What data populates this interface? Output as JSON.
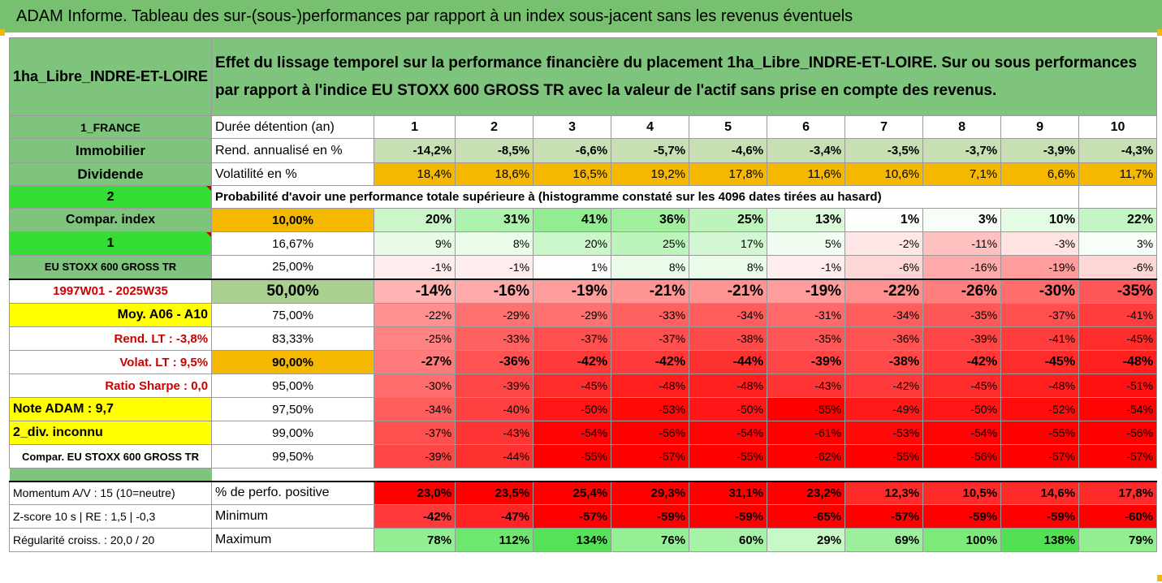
{
  "banner": "ADAM Informe. Tableau des sur-(sous-)performances par rapport à un index sous-jacent sans les revenus éventuels",
  "placement_name": "1ha_Libre_INDRE-ET-LOIRE",
  "description": "Effet du lissage temporel sur la performance financière du placement 1ha_Libre_INDRE-ET-LOIRE. Sur ou sous performances par rapport à l'indice EU STOXX 600 GROSS TR avec la valeur de l'actif sans prise en compte des revenus.",
  "left": {
    "country": "1_FRANCE",
    "category": "Immobilier",
    "dividend": "Dividende",
    "num2": "2",
    "compar_index": "Compar. index",
    "num1": "1",
    "index_name": "EU STOXX 600 GROSS TR",
    "period": "1997W01 - 2025W35",
    "moy": "Moy. A06 - A10",
    "rend_lt": "Rend. LT :   -3,8%",
    "volat_lt": "Volat. LT :   9,5%",
    "sharpe": "Ratio Sharpe :   0,0",
    "note": "Note ADAM : 9,7",
    "div": "2_div. inconnu",
    "compar": "Compar. EU STOXX 600 GROSS TR"
  },
  "labels": {
    "duree": "Durée détention (an)",
    "rend": "Rend. annualisé en %",
    "volat": "Volatilité en %",
    "proba": "Probabilité d'avoir une performance totale supérieure à (histogramme constaté sur les 4096 dates tirées au hasard)",
    "pct_pos": "% de perfo. positive",
    "minimum": "Minimum",
    "maximum": "Maximum"
  },
  "years": [
    "1",
    "2",
    "3",
    "4",
    "5",
    "6",
    "7",
    "8",
    "9",
    "10"
  ],
  "rend": [
    "-14,2%",
    "-8,5%",
    "-6,6%",
    "-5,7%",
    "-4,6%",
    "-3,4%",
    "-3,5%",
    "-3,7%",
    "-3,9%",
    "-4,3%"
  ],
  "volat": [
    "18,4%",
    "18,6%",
    "16,5%",
    "19,2%",
    "17,8%",
    "11,6%",
    "10,6%",
    "7,1%",
    "6,6%",
    "11,7%"
  ],
  "quantiles": [
    {
      "p": "10,00%",
      "v": [
        "20%",
        "31%",
        "41%",
        "36%",
        "25%",
        "13%",
        "1%",
        "3%",
        "10%",
        "22%"
      ]
    },
    {
      "p": "16,67%",
      "v": [
        "9%",
        "8%",
        "20%",
        "25%",
        "17%",
        "5%",
        "-2%",
        "-11%",
        "-3%",
        "3%"
      ]
    },
    {
      "p": "25,00%",
      "v": [
        "-1%",
        "-1%",
        "1%",
        "8%",
        "8%",
        "-1%",
        "-6%",
        "-16%",
        "-19%",
        "-6%"
      ]
    },
    {
      "p": "50,00%",
      "v": [
        "-14%",
        "-16%",
        "-19%",
        "-21%",
        "-21%",
        "-19%",
        "-22%",
        "-26%",
        "-30%",
        "-35%"
      ]
    },
    {
      "p": "75,00%",
      "v": [
        "-22%",
        "-29%",
        "-29%",
        "-33%",
        "-34%",
        "-31%",
        "-34%",
        "-35%",
        "-37%",
        "-41%"
      ]
    },
    {
      "p": "83,33%",
      "v": [
        "-25%",
        "-33%",
        "-37%",
        "-37%",
        "-38%",
        "-35%",
        "-36%",
        "-39%",
        "-41%",
        "-45%"
      ]
    },
    {
      "p": "90,00%",
      "v": [
        "-27%",
        "-36%",
        "-42%",
        "-42%",
        "-44%",
        "-39%",
        "-38%",
        "-42%",
        "-45%",
        "-48%"
      ]
    },
    {
      "p": "95,00%",
      "v": [
        "-30%",
        "-39%",
        "-45%",
        "-48%",
        "-48%",
        "-43%",
        "-42%",
        "-45%",
        "-48%",
        "-51%"
      ]
    },
    {
      "p": "97,50%",
      "v": [
        "-34%",
        "-40%",
        "-50%",
        "-53%",
        "-50%",
        "-55%",
        "-49%",
        "-50%",
        "-52%",
        "-54%"
      ]
    },
    {
      "p": "99,00%",
      "v": [
        "-37%",
        "-43%",
        "-54%",
        "-56%",
        "-54%",
        "-61%",
        "-53%",
        "-54%",
        "-55%",
        "-56%"
      ]
    },
    {
      "p": "99,50%",
      "v": [
        "-39%",
        "-44%",
        "-55%",
        "-57%",
        "-55%",
        "-62%",
        "-55%",
        "-56%",
        "-57%",
        "-57%"
      ]
    }
  ],
  "bottom": {
    "momentum": "Momentum A/V : 15 (10=neutre)",
    "zscore": "Z-score 10 s  | RE : 1,5  | -0,3",
    "regularite": "Régularité croiss. : 20,0 / 20",
    "pct_pos": [
      "23,0%",
      "23,5%",
      "25,4%",
      "29,3%",
      "31,1%",
      "23,2%",
      "12,3%",
      "10,5%",
      "14,6%",
      "17,8%"
    ],
    "minimum": [
      "-42%",
      "-47%",
      "-57%",
      "-59%",
      "-59%",
      "-65%",
      "-57%",
      "-59%",
      "-59%",
      "-60%"
    ],
    "maximum": [
      "78%",
      "112%",
      "134%",
      "76%",
      "60%",
      "29%",
      "69%",
      "100%",
      "138%",
      "79%"
    ]
  },
  "colors": {
    "header_green": "#7ec47c",
    "orange": "#f5b800",
    "yellow": "#ffff00",
    "red_strong": "#ff0000"
  }
}
